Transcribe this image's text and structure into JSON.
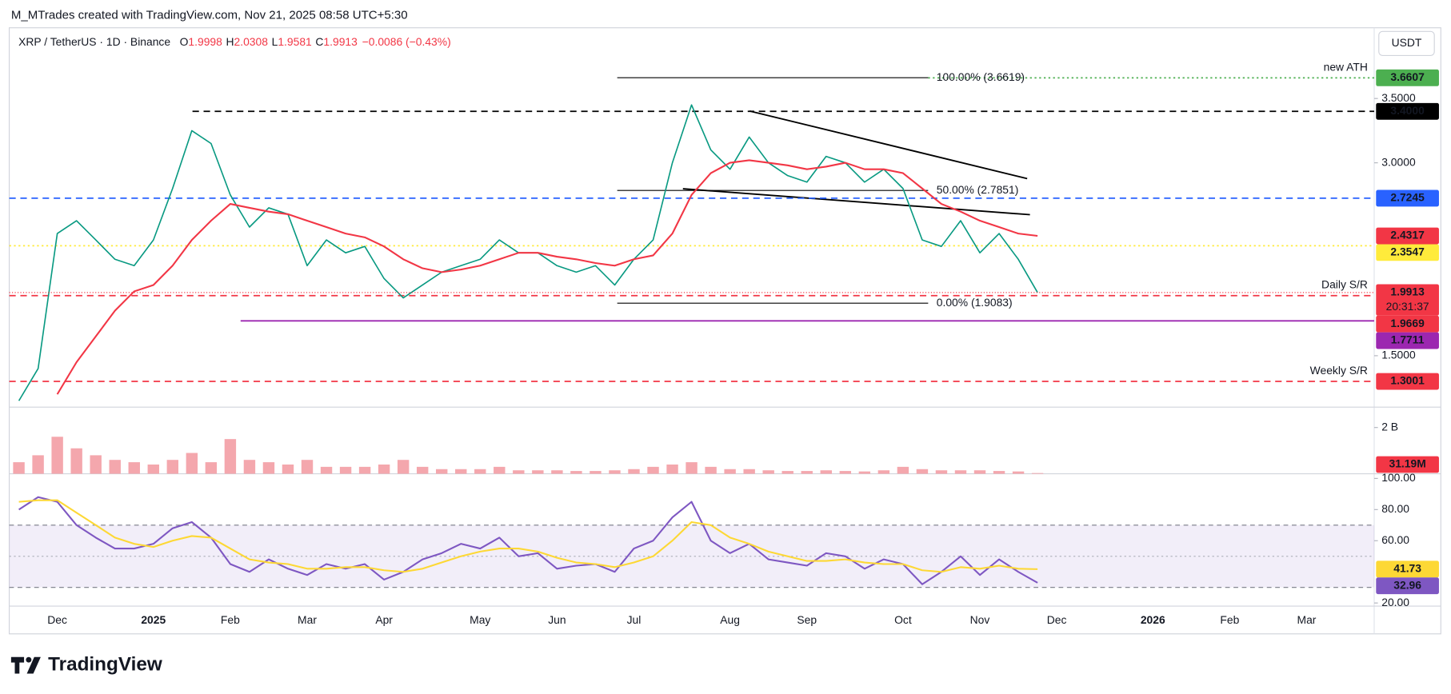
{
  "header": {
    "byline": "M_MTrades created with TradingView.com, Nov 21, 2025 08:58 UTC+5:30",
    "symbol": "XRP / TetherUS · 1D · Binance",
    "ohlc": [
      {
        "key": "O",
        "value": "1.9998"
      },
      {
        "key": "H",
        "value": "2.0308"
      },
      {
        "key": "L",
        "value": "1.9581"
      },
      {
        "key": "C",
        "value": "1.9913"
      }
    ],
    "change": "−0.0086 (−0.43%)",
    "currency": "USDT"
  },
  "footer": {
    "logo": "TradingView"
  },
  "chart_data": [
    {
      "type": "line",
      "categories": [
        null,
        null,
        "Dec",
        null,
        null,
        null,
        null,
        "2025",
        null,
        null,
        null,
        "Feb",
        null,
        null,
        null,
        "Mar",
        null,
        null,
        null,
        "Apr",
        null,
        null,
        null,
        null,
        "May",
        null,
        null,
        null,
        "Jun",
        null,
        null,
        null,
        "Jul",
        null,
        null,
        null,
        null,
        "Aug",
        null,
        null,
        null,
        "Sep",
        null,
        null,
        null,
        null,
        "Oct",
        null,
        null,
        null,
        "Nov",
        null,
        null,
        null,
        "Dec",
        null,
        null,
        null,
        null,
        "2026",
        null,
        null,
        null,
        "Feb",
        null,
        null,
        null,
        "Mar",
        null,
        null
      ],
      "series": [
        {
          "color": "#089981",
          "label_color": "#f23645",
          "countdown": "20:31:37",
          "values": [
            1.15,
            1.4,
            2.45,
            2.55,
            2.4,
            2.25,
            2.2,
            2.4,
            2.8,
            3.25,
            3.15,
            2.75,
            2.5,
            2.65,
            2.6,
            2.2,
            2.4,
            2.3,
            2.35,
            2.1,
            1.95,
            2.05,
            2.15,
            2.2,
            2.25,
            2.4,
            2.3,
            2.3,
            2.2,
            2.15,
            2.2,
            2.05,
            2.25,
            2.4,
            3.0,
            3.45,
            3.1,
            2.95,
            3.2,
            3.0,
            2.9,
            2.85,
            3.05,
            3.0,
            2.85,
            2.95,
            2.8,
            2.4,
            2.35,
            2.55,
            2.3,
            2.45,
            2.25,
            1.9913,
            null,
            null,
            null,
            null,
            null,
            null,
            null,
            null,
            null,
            null,
            null,
            null,
            null,
            null,
            null,
            null
          ]
        },
        {
          "color": "#f23645",
          "values": [
            null,
            null,
            1.2,
            1.45,
            1.65,
            1.85,
            2.0,
            2.05,
            2.2,
            2.4,
            2.55,
            2.68,
            2.65,
            2.62,
            2.6,
            2.55,
            2.5,
            2.45,
            2.42,
            2.35,
            2.25,
            2.18,
            2.15,
            2.17,
            2.2,
            2.25,
            2.3,
            2.3,
            2.27,
            2.25,
            2.22,
            2.2,
            2.25,
            2.28,
            2.45,
            2.75,
            2.92,
            3.0,
            3.02,
            3.0,
            2.98,
            2.95,
            2.97,
            3.0,
            2.95,
            2.95,
            2.92,
            2.8,
            2.68,
            2.62,
            2.55,
            2.5,
            2.45,
            2.4317,
            null,
            null,
            null,
            null,
            null,
            null,
            null,
            null,
            null,
            null,
            null,
            null,
            null,
            null,
            null,
            null
          ]
        }
      ],
      "ylim": [
        1.1,
        4.05
      ],
      "yticks": [
        {
          "value": 1.5,
          "label": "1.5000"
        },
        {
          "value": 3,
          "label": "3.0000"
        },
        {
          "value": 3.5,
          "label": "3.5000"
        }
      ],
      "levels": [
        {
          "value": 3.6607,
          "label": "3.6607",
          "name": "new ATH",
          "color": "#4caf50",
          "style": "dotted"
        },
        {
          "value": 3.4,
          "label": "3.4000",
          "color": "#000000",
          "style": "dashed"
        },
        {
          "value": 2.7245,
          "label": "2.7245",
          "color": "#2962ff",
          "style": "dashed"
        },
        {
          "value": 2.3547,
          "label": "2.3547",
          "color": "#ffeb3b",
          "style": "dotted"
        },
        {
          "value": 1.9669,
          "label": "1.9669",
          "name": "Daily S/R",
          "color": "#f23645",
          "style": "dashed"
        },
        {
          "value": 1.7711,
          "label": "1.7711",
          "color": "#9c27b0",
          "style": "solid"
        },
        {
          "value": 1.3001,
          "label": "1.3001",
          "name": "Weekly S/R",
          "color": "#f23645",
          "style": "dashed"
        }
      ],
      "fib": [
        {
          "value": 3.6619,
          "label": "100.00% (3.6619)"
        },
        {
          "value": 2.7851,
          "label": "50.00% (2.7851)"
        },
        {
          "value": 1.9083,
          "label": "0.00% (1.9083)"
        }
      ]
    },
    {
      "type": "bar",
      "color": "#f4a7ad",
      "label_color": "#f23645",
      "values": [
        500000000,
        800000000,
        1600000000,
        1100000000,
        800000000,
        600000000,
        500000000,
        400000000,
        600000000,
        900000000,
        500000000,
        1500000000,
        600000000,
        500000000,
        400000000,
        600000000,
        300000000,
        300000000,
        300000000,
        400000000,
        600000000,
        300000000,
        200000000,
        200000000,
        200000000,
        300000000,
        150000000,
        150000000,
        150000000,
        120000000,
        120000000,
        150000000,
        200000000,
        300000000,
        400000000,
        500000000,
        300000000,
        200000000,
        200000000,
        150000000,
        120000000,
        120000000,
        150000000,
        120000000,
        100000000,
        150000000,
        300000000,
        200000000,
        150000000,
        150000000,
        150000000,
        120000000,
        100000000,
        31190000,
        null,
        null,
        null,
        null,
        null,
        null,
        null,
        null,
        null,
        null,
        null,
        null,
        null,
        null,
        null,
        null
      ],
      "value_labels": [
        null,
        null,
        null,
        null,
        null,
        null,
        null,
        null,
        null,
        null,
        null,
        null,
        null,
        null,
        null,
        null,
        null,
        null,
        null,
        null,
        null,
        null,
        null,
        null,
        null,
        null,
        null,
        null,
        null,
        null,
        null,
        null,
        null,
        null,
        null,
        null,
        null,
        null,
        null,
        null,
        null,
        null,
        null,
        null,
        null,
        null,
        null,
        null,
        null,
        null,
        null,
        null,
        null,
        "31.19M",
        null,
        null,
        null,
        null,
        null,
        null,
        null,
        null,
        null,
        null,
        null,
        null,
        null,
        null,
        null,
        null
      ],
      "ylim": [
        0,
        2880000000
      ],
      "yticks": [
        {
          "value": 2000000000,
          "label": "2 B"
        }
      ]
    },
    {
      "type": "line",
      "series": [
        {
          "color": "#7e57c2",
          "values": [
            80,
            88,
            85,
            70,
            62,
            55,
            55,
            58,
            68,
            72,
            62,
            45,
            40,
            48,
            42,
            38,
            45,
            42,
            45,
            35,
            40,
            48,
            52,
            58,
            55,
            62,
            50,
            52,
            42,
            44,
            45,
            40,
            55,
            60,
            75,
            85,
            60,
            52,
            58,
            48,
            46,
            44,
            52,
            50,
            42,
            48,
            45,
            32,
            40,
            50,
            38,
            48,
            40,
            32.96,
            null,
            null,
            null,
            null,
            null,
            null,
            null,
            null,
            null,
            null,
            null,
            null,
            null,
            null,
            null,
            null
          ]
        },
        {
          "color": "#fdd835",
          "values": [
            85,
            86,
            86,
            78,
            70,
            62,
            58,
            56,
            60,
            63,
            62,
            55,
            48,
            46,
            45,
            42,
            42,
            43,
            43,
            41,
            40,
            42,
            46,
            50,
            53,
            55,
            55,
            53,
            49,
            46,
            45,
            43,
            46,
            50,
            60,
            72,
            70,
            62,
            58,
            53,
            50,
            47,
            47,
            48,
            46,
            45,
            45,
            41,
            40,
            43,
            42,
            44,
            42,
            41.73,
            null,
            null,
            null,
            null,
            null,
            null,
            null,
            null,
            null,
            null,
            null,
            null,
            null,
            null,
            null,
            null
          ]
        }
      ],
      "ylim": [
        18,
        103
      ],
      "yticks": [
        {
          "value": 20,
          "label": "20.00"
        },
        {
          "value": 60,
          "label": "60.00"
        },
        {
          "value": 80,
          "label": "80.00"
        },
        {
          "value": 100,
          "label": "100.00"
        }
      ],
      "bands": [
        30,
        70
      ],
      "midline": 50
    }
  ]
}
